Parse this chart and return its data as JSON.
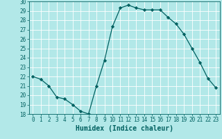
{
  "x": [
    0,
    1,
    2,
    3,
    4,
    5,
    6,
    7,
    8,
    9,
    10,
    11,
    12,
    13,
    14,
    15,
    16,
    17,
    18,
    19,
    20,
    21,
    22,
    23
  ],
  "y": [
    22,
    21.7,
    21,
    19.8,
    19.6,
    19,
    18.3,
    18,
    21,
    23.7,
    27.3,
    29.3,
    29.6,
    29.3,
    29.1,
    29.1,
    29.1,
    28.3,
    27.6,
    26.5,
    25,
    23.5,
    21.8,
    20.8
  ],
  "line_color": "#006060",
  "marker": "D",
  "marker_size": 2.2,
  "bg_color": "#b2e8e8",
  "grid_color": "#ffffff",
  "tick_color": "#006060",
  "xlabel": "Humidex (Indice chaleur)",
  "ylim": [
    18,
    30
  ],
  "xlim": [
    -0.5,
    23.5
  ],
  "yticks": [
    18,
    19,
    20,
    21,
    22,
    23,
    24,
    25,
    26,
    27,
    28,
    29,
    30
  ],
  "xticks": [
    0,
    1,
    2,
    3,
    4,
    5,
    6,
    7,
    8,
    9,
    10,
    11,
    12,
    13,
    14,
    15,
    16,
    17,
    18,
    19,
    20,
    21,
    22,
    23
  ],
  "xlabel_fontsize": 7,
  "tick_fontsize": 5.5,
  "linewidth": 0.9
}
